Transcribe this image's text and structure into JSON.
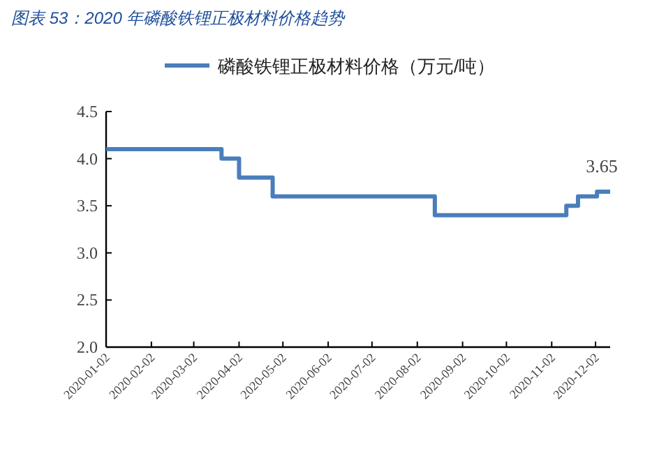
{
  "chart_data": {
    "type": "step",
    "title": "图表 53：2020 年磷酸铁锂正极材料价格趋势",
    "x": [
      "2020-01-02",
      "2020-03-21",
      "2020-04-02",
      "2020-04-25",
      "2020-08-14",
      "2020-11-12",
      "2020-11-20",
      "2020-12-03",
      "2020-12-12"
    ],
    "series": [
      {
        "name": "磷酸铁锂正极材料价格（万元/吨）",
        "color": "#4a7ebb",
        "values": [
          4.1,
          4.0,
          3.8,
          3.6,
          3.4,
          3.5,
          3.6,
          3.65,
          3.65
        ]
      }
    ],
    "annotations": [
      {
        "text": "3.65",
        "x": "2020-12-12",
        "y": 3.65
      }
    ],
    "xlim": [
      "2020-01-02",
      "2020-12-12"
    ],
    "xticks": [
      "2020-01-02",
      "2020-02-02",
      "2020-03-02",
      "2020-04-02",
      "2020-05-02",
      "2020-06-02",
      "2020-07-02",
      "2020-08-02",
      "2020-09-02",
      "2020-10-02",
      "2020-11-02",
      "2020-12-02"
    ],
    "ylim": [
      2.0,
      4.5
    ],
    "yticks": [
      {
        "value": 2.0,
        "label": "2.0"
      },
      {
        "value": 2.5,
        "label": "2.5"
      },
      {
        "value": 3.0,
        "label": "3.0"
      },
      {
        "value": 3.5,
        "label": "3.5"
      },
      {
        "value": 4.0,
        "label": "4.0"
      },
      {
        "value": 4.5,
        "label": "4.5"
      }
    ],
    "legend": "top",
    "grid": false,
    "marker": "none",
    "line_style": "solid"
  }
}
